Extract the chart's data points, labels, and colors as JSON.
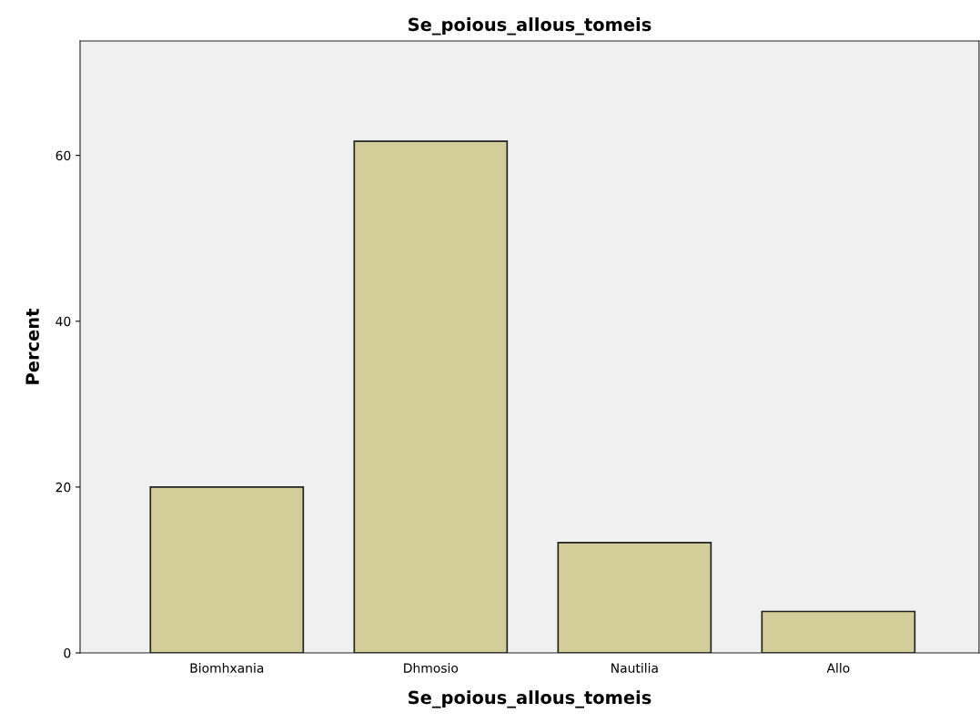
{
  "chart_data": {
    "type": "bar",
    "title": "Se_poious_allous_tomeis",
    "xlabel": "Se_poious_allous_tomeis",
    "ylabel": "Percent",
    "categories": [
      "Biomhxania",
      "Dhmosio",
      "Nautilia",
      "Allo"
    ],
    "values": [
      20.0,
      61.7,
      13.3,
      5.0
    ],
    "color": "#d3ce99",
    "ylim": [
      0,
      73.8
    ],
    "yticks": [
      0,
      20,
      40,
      60
    ],
    "grid": false,
    "legend": false
  }
}
